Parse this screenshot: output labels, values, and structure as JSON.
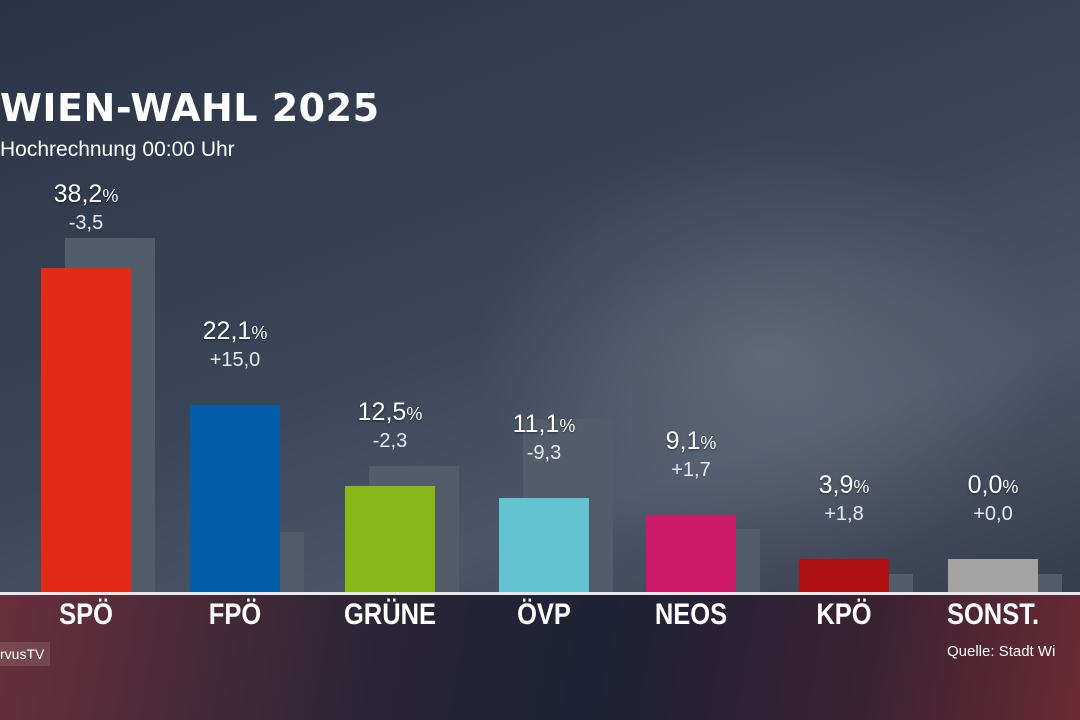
{
  "header": {
    "title": "WIEN-WAHL 2025",
    "subtitle": "Hochrechnung 00:00 Uhr"
  },
  "footer": {
    "logo": "rvusTV",
    "source": "Quelle: Stadt Wi"
  },
  "chart_data": {
    "type": "bar",
    "title": "WIEN-WAHL 2025",
    "subtitle": "Hochrechnung 00:00 Uhr",
    "unit": "%",
    "categories": [
      "SPÖ",
      "FPÖ",
      "GRÜNE",
      "ÖVP",
      "NEOS",
      "KPÖ",
      "SONST."
    ],
    "series": [
      {
        "values": [
          38.2,
          22.1,
          12.5,
          11.1,
          9.1,
          3.9,
          0.0
        ],
        "labels": [
          "38,2",
          "22,1",
          "12,5",
          "11,1",
          "9,1",
          "3,9",
          "0,0"
        ],
        "colors": [
          "#e32a17",
          "#005ea8",
          "#86b817",
          "#63c3d1",
          "#cd1a68",
          "#b01212",
          "#a3a3a3"
        ]
      },
      {
        "values": [
          41.7,
          7.1,
          14.8,
          20.4,
          7.4,
          2.1,
          0.0
        ],
        "color": "#535c69"
      }
    ],
    "changes": [
      "-3,5",
      "+15,0",
      "-2,3",
      "-9,3",
      "+1,7",
      "+1,8",
      "+0,0"
    ],
    "ylim": [
      0,
      42
    ],
    "grid": false
  }
}
